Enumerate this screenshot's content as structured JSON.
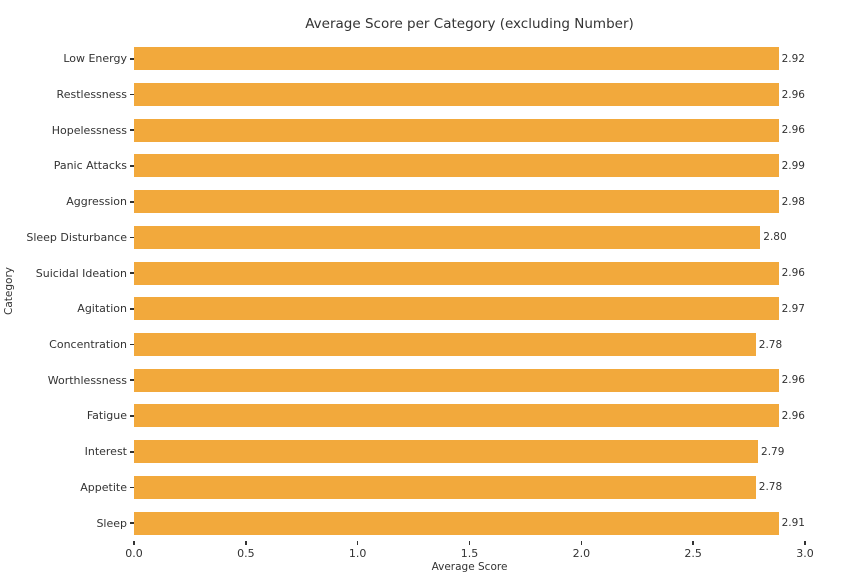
{
  "chart_data": {
    "type": "bar",
    "orientation": "horizontal",
    "title": "Average Score per Category (excluding Number)",
    "xlabel": "Average Score",
    "ylabel": "Category",
    "categories": [
      "Low Energy",
      "Restlessness",
      "Hopelessness",
      "Panic Attacks",
      "Aggression",
      "Sleep Disturbance",
      "Suicidal Ideation",
      "Agitation",
      "Concentration",
      "Worthlessness",
      "Fatigue",
      "Interest",
      "Appetite",
      "Sleep"
    ],
    "values": [
      2.92,
      2.96,
      2.96,
      2.99,
      2.98,
      2.8,
      2.96,
      2.97,
      2.78,
      2.96,
      2.96,
      2.79,
      2.78,
      2.91
    ],
    "value_labels": [
      "2.92",
      "2.96",
      "2.96",
      "2.99",
      "2.98",
      "2.80",
      "2.96",
      "2.97",
      "2.78",
      "2.96",
      "2.96",
      "2.79",
      "2.78",
      "2.91"
    ],
    "xlim": [
      0.0,
      3.0
    ],
    "xtick_labels": [
      "0.0",
      "0.5",
      "1.0",
      "1.5",
      "2.0",
      "2.5",
      "3.0"
    ],
    "xtick_values": [
      0.0,
      0.5,
      1.0,
      1.5,
      2.0,
      2.5,
      3.0
    ],
    "bar_color": "#F2A93C",
    "text_color": "#333333",
    "background_color": "#FFFFFF",
    "grid": false,
    "legend": null
  }
}
